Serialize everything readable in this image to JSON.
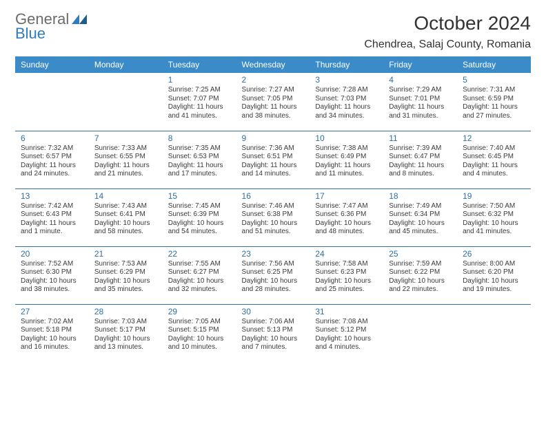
{
  "logo": {
    "word1": "General",
    "word2": "Blue"
  },
  "title": "October 2024",
  "location": "Chendrea, Salaj County, Romania",
  "colors": {
    "header_bg": "#3b8bc9",
    "header_text": "#ffffff",
    "day_number": "#2f6fa3",
    "row_border": "#2f6fa3",
    "logo_grey": "#6b6b6b",
    "logo_blue": "#2f7bbf",
    "body_text": "#3a3a3a",
    "page_bg": "#ffffff"
  },
  "typography": {
    "title_fontsize_pt": 21,
    "location_fontsize_pt": 12,
    "day_header_fontsize_pt": 9,
    "cell_fontsize_pt": 7.5
  },
  "day_headers": [
    "Sunday",
    "Monday",
    "Tuesday",
    "Wednesday",
    "Thursday",
    "Friday",
    "Saturday"
  ],
  "weeks": [
    [
      null,
      null,
      {
        "day": "1",
        "sunrise": "Sunrise: 7:25 AM",
        "sunset": "Sunset: 7:07 PM",
        "daylight": "Daylight: 11 hours and 41 minutes."
      },
      {
        "day": "2",
        "sunrise": "Sunrise: 7:27 AM",
        "sunset": "Sunset: 7:05 PM",
        "daylight": "Daylight: 11 hours and 38 minutes."
      },
      {
        "day": "3",
        "sunrise": "Sunrise: 7:28 AM",
        "sunset": "Sunset: 7:03 PM",
        "daylight": "Daylight: 11 hours and 34 minutes."
      },
      {
        "day": "4",
        "sunrise": "Sunrise: 7:29 AM",
        "sunset": "Sunset: 7:01 PM",
        "daylight": "Daylight: 11 hours and 31 minutes."
      },
      {
        "day": "5",
        "sunrise": "Sunrise: 7:31 AM",
        "sunset": "Sunset: 6:59 PM",
        "daylight": "Daylight: 11 hours and 27 minutes."
      }
    ],
    [
      {
        "day": "6",
        "sunrise": "Sunrise: 7:32 AM",
        "sunset": "Sunset: 6:57 PM",
        "daylight": "Daylight: 11 hours and 24 minutes."
      },
      {
        "day": "7",
        "sunrise": "Sunrise: 7:33 AM",
        "sunset": "Sunset: 6:55 PM",
        "daylight": "Daylight: 11 hours and 21 minutes."
      },
      {
        "day": "8",
        "sunrise": "Sunrise: 7:35 AM",
        "sunset": "Sunset: 6:53 PM",
        "daylight": "Daylight: 11 hours and 17 minutes."
      },
      {
        "day": "9",
        "sunrise": "Sunrise: 7:36 AM",
        "sunset": "Sunset: 6:51 PM",
        "daylight": "Daylight: 11 hours and 14 minutes."
      },
      {
        "day": "10",
        "sunrise": "Sunrise: 7:38 AM",
        "sunset": "Sunset: 6:49 PM",
        "daylight": "Daylight: 11 hours and 11 minutes."
      },
      {
        "day": "11",
        "sunrise": "Sunrise: 7:39 AM",
        "sunset": "Sunset: 6:47 PM",
        "daylight": "Daylight: 11 hours and 8 minutes."
      },
      {
        "day": "12",
        "sunrise": "Sunrise: 7:40 AM",
        "sunset": "Sunset: 6:45 PM",
        "daylight": "Daylight: 11 hours and 4 minutes."
      }
    ],
    [
      {
        "day": "13",
        "sunrise": "Sunrise: 7:42 AM",
        "sunset": "Sunset: 6:43 PM",
        "daylight": "Daylight: 11 hours and 1 minute."
      },
      {
        "day": "14",
        "sunrise": "Sunrise: 7:43 AM",
        "sunset": "Sunset: 6:41 PM",
        "daylight": "Daylight: 10 hours and 58 minutes."
      },
      {
        "day": "15",
        "sunrise": "Sunrise: 7:45 AM",
        "sunset": "Sunset: 6:39 PM",
        "daylight": "Daylight: 10 hours and 54 minutes."
      },
      {
        "day": "16",
        "sunrise": "Sunrise: 7:46 AM",
        "sunset": "Sunset: 6:38 PM",
        "daylight": "Daylight: 10 hours and 51 minutes."
      },
      {
        "day": "17",
        "sunrise": "Sunrise: 7:47 AM",
        "sunset": "Sunset: 6:36 PM",
        "daylight": "Daylight: 10 hours and 48 minutes."
      },
      {
        "day": "18",
        "sunrise": "Sunrise: 7:49 AM",
        "sunset": "Sunset: 6:34 PM",
        "daylight": "Daylight: 10 hours and 45 minutes."
      },
      {
        "day": "19",
        "sunrise": "Sunrise: 7:50 AM",
        "sunset": "Sunset: 6:32 PM",
        "daylight": "Daylight: 10 hours and 41 minutes."
      }
    ],
    [
      {
        "day": "20",
        "sunrise": "Sunrise: 7:52 AM",
        "sunset": "Sunset: 6:30 PM",
        "daylight": "Daylight: 10 hours and 38 minutes."
      },
      {
        "day": "21",
        "sunrise": "Sunrise: 7:53 AM",
        "sunset": "Sunset: 6:29 PM",
        "daylight": "Daylight: 10 hours and 35 minutes."
      },
      {
        "day": "22",
        "sunrise": "Sunrise: 7:55 AM",
        "sunset": "Sunset: 6:27 PM",
        "daylight": "Daylight: 10 hours and 32 minutes."
      },
      {
        "day": "23",
        "sunrise": "Sunrise: 7:56 AM",
        "sunset": "Sunset: 6:25 PM",
        "daylight": "Daylight: 10 hours and 28 minutes."
      },
      {
        "day": "24",
        "sunrise": "Sunrise: 7:58 AM",
        "sunset": "Sunset: 6:23 PM",
        "daylight": "Daylight: 10 hours and 25 minutes."
      },
      {
        "day": "25",
        "sunrise": "Sunrise: 7:59 AM",
        "sunset": "Sunset: 6:22 PM",
        "daylight": "Daylight: 10 hours and 22 minutes."
      },
      {
        "day": "26",
        "sunrise": "Sunrise: 8:00 AM",
        "sunset": "Sunset: 6:20 PM",
        "daylight": "Daylight: 10 hours and 19 minutes."
      }
    ],
    [
      {
        "day": "27",
        "sunrise": "Sunrise: 7:02 AM",
        "sunset": "Sunset: 5:18 PM",
        "daylight": "Daylight: 10 hours and 16 minutes."
      },
      {
        "day": "28",
        "sunrise": "Sunrise: 7:03 AM",
        "sunset": "Sunset: 5:17 PM",
        "daylight": "Daylight: 10 hours and 13 minutes."
      },
      {
        "day": "29",
        "sunrise": "Sunrise: 7:05 AM",
        "sunset": "Sunset: 5:15 PM",
        "daylight": "Daylight: 10 hours and 10 minutes."
      },
      {
        "day": "30",
        "sunrise": "Sunrise: 7:06 AM",
        "sunset": "Sunset: 5:13 PM",
        "daylight": "Daylight: 10 hours and 7 minutes."
      },
      {
        "day": "31",
        "sunrise": "Sunrise: 7:08 AM",
        "sunset": "Sunset: 5:12 PM",
        "daylight": "Daylight: 10 hours and 4 minutes."
      },
      null,
      null
    ]
  ]
}
